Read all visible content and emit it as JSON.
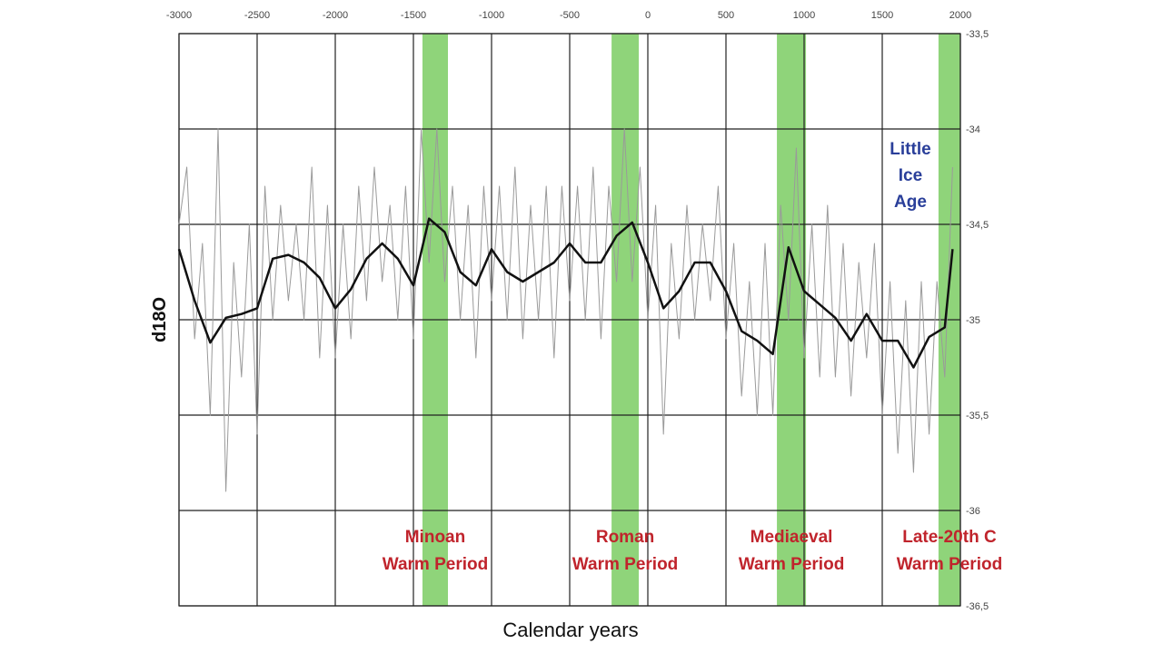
{
  "chart_data": {
    "type": "line",
    "xlabel": "Calendar years",
    "ylabel": "d18O",
    "xlim": [
      -3000,
      2000
    ],
    "xticks": [
      -3000,
      -2500,
      -2000,
      -1500,
      -1000,
      -500,
      0,
      500,
      1000,
      1500,
      2000
    ],
    "ylim": [
      -36.5,
      -33.5
    ],
    "yticks": [
      {
        "value": -33.5,
        "label": "-33,5"
      },
      -34,
      {
        "value": -34.5,
        "label": "-34,5"
      },
      -35,
      {
        "value": -35.5,
        "label": "-35,5"
      },
      -36,
      {
        "value": -36.5,
        "label": "-36,5"
      }
    ],
    "grid": true,
    "bands": [
      {
        "start": -1442,
        "end": -1279,
        "lines": [
          "Minoan",
          "Warm Period"
        ],
        "color": "#8fd47a"
      },
      {
        "start": -232,
        "end": -58,
        "lines": [
          "Roman",
          "Warm Period"
        ],
        "color": "#8fd47a"
      },
      {
        "start": 826,
        "end": 1012,
        "lines": [
          "Mediaeval",
          "Warm Period"
        ],
        "color": "#8fd47a"
      },
      {
        "start": 1860,
        "end": 2000,
        "lines": [
          "Late-20th C",
          "Warm Period"
        ],
        "color": "#8fd47a"
      }
    ],
    "annotations": [
      {
        "lines": [
          "Little",
          "Ice",
          "Age"
        ],
        "color": "#2a3f9a"
      }
    ],
    "series": [
      {
        "color": "#9a9a9a",
        "width": 1,
        "x": [
          -3000,
          -2950,
          -2900,
          -2850,
          -2800,
          -2750,
          -2700,
          -2650,
          -2600,
          -2550,
          -2500,
          -2450,
          -2400,
          -2350,
          -2300,
          -2250,
          -2200,
          -2150,
          -2100,
          -2050,
          -2000,
          -1950,
          -1900,
          -1850,
          -1800,
          -1750,
          -1700,
          -1650,
          -1600,
          -1550,
          -1500,
          -1450,
          -1400,
          -1350,
          -1300,
          -1250,
          -1200,
          -1150,
          -1100,
          -1050,
          -1000,
          -950,
          -900,
          -850,
          -800,
          -750,
          -700,
          -650,
          -600,
          -550,
          -500,
          -450,
          -400,
          -350,
          -300,
          -250,
          -200,
          -150,
          -100,
          -50,
          0,
          50,
          100,
          150,
          200,
          250,
          300,
          350,
          400,
          450,
          500,
          550,
          600,
          650,
          700,
          750,
          800,
          850,
          900,
          950,
          1000,
          1050,
          1100,
          1150,
          1200,
          1250,
          1300,
          1350,
          1400,
          1450,
          1500,
          1550,
          1600,
          1650,
          1700,
          1750,
          1800,
          1850,
          1900,
          1950
        ],
        "values": [
          -34.5,
          -34.2,
          -35.1,
          -34.6,
          -35.5,
          -34.0,
          -35.9,
          -34.7,
          -35.3,
          -34.5,
          -35.6,
          -34.3,
          -35.0,
          -34.4,
          -34.9,
          -34.5,
          -35.0,
          -34.2,
          -35.2,
          -34.4,
          -35.2,
          -34.5,
          -35.1,
          -34.3,
          -34.9,
          -34.2,
          -34.8,
          -34.4,
          -35.0,
          -34.3,
          -35.1,
          -34.0,
          -34.7,
          -34.0,
          -34.8,
          -34.3,
          -35.0,
          -34.4,
          -35.2,
          -34.3,
          -34.9,
          -34.3,
          -35.0,
          -34.2,
          -35.1,
          -34.4,
          -35.0,
          -34.3,
          -35.2,
          -34.3,
          -34.9,
          -34.3,
          -35.0,
          -34.2,
          -35.1,
          -34.3,
          -34.8,
          -34.0,
          -34.8,
          -34.2,
          -35.0,
          -34.4,
          -35.6,
          -34.6,
          -35.1,
          -34.4,
          -35.0,
          -34.5,
          -34.9,
          -34.3,
          -35.1,
          -34.6,
          -35.4,
          -34.8,
          -35.5,
          -34.6,
          -35.5,
          -34.4,
          -35.0,
          -34.1,
          -35.2,
          -34.5,
          -35.3,
          -34.4,
          -35.3,
          -34.6,
          -35.4,
          -34.7,
          -35.2,
          -34.6,
          -35.5,
          -34.8,
          -35.7,
          -34.9,
          -35.8,
          -34.8,
          -35.6,
          -34.8,
          -35.3,
          -34.2
        ]
      },
      {
        "color": "#111111",
        "width": 2.5,
        "x": [
          -3000,
          -2900,
          -2800,
          -2700,
          -2600,
          -2500,
          -2400,
          -2300,
          -2200,
          -2100,
          -2000,
          -1900,
          -1800,
          -1700,
          -1600,
          -1500,
          -1400,
          -1300,
          -1200,
          -1100,
          -1000,
          -900,
          -800,
          -700,
          -600,
          -500,
          -400,
          -300,
          -200,
          -100,
          0,
          100,
          200,
          300,
          400,
          500,
          600,
          700,
          800,
          900,
          1000,
          1100,
          1200,
          1300,
          1400,
          1500,
          1600,
          1700,
          1800,
          1900,
          1950
        ],
        "values": [
          -34.63,
          -34.9,
          -35.12,
          -34.99,
          -34.97,
          -34.94,
          -34.68,
          -34.66,
          -34.7,
          -34.78,
          -34.94,
          -34.84,
          -34.68,
          -34.6,
          -34.68,
          -34.82,
          -34.47,
          -34.54,
          -34.75,
          -34.82,
          -34.63,
          -34.75,
          -34.8,
          -34.75,
          -34.7,
          -34.6,
          -34.7,
          -34.7,
          -34.56,
          -34.49,
          -34.7,
          -34.94,
          -34.85,
          -34.7,
          -34.7,
          -34.85,
          -35.06,
          -35.11,
          -35.18,
          -34.62,
          -34.85,
          -34.92,
          -34.99,
          -35.11,
          -34.97,
          -35.11,
          -35.11,
          -35.25,
          -35.09,
          -35.04,
          -34.63
        ]
      }
    ]
  }
}
